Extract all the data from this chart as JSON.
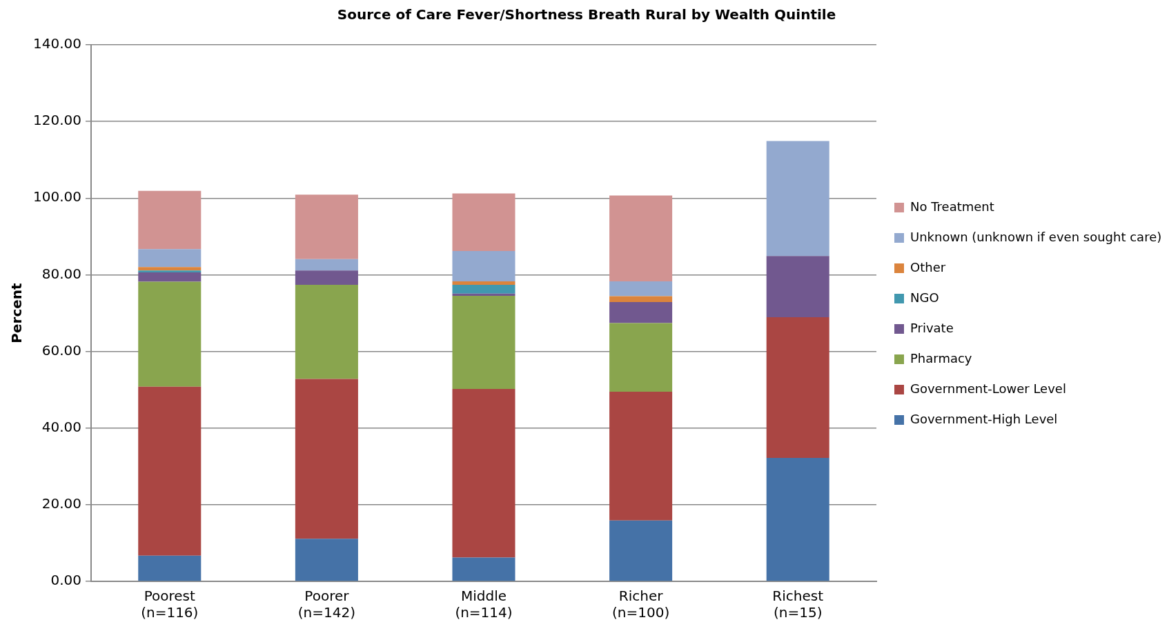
{
  "chart_data": {
    "type": "bar",
    "stacked": true,
    "title": "Source of Care Fever/Shortness Breath Rural by Wealth Quintile",
    "ylabel": "Percent",
    "categories": [
      "Poorest\n(n=116)",
      "Poorer\n(n=142)",
      "Middle\n(n=114)",
      "Richer\n(n=100)",
      "Richest\n(n=15)"
    ],
    "series": [
      {
        "name": "Government-High Level",
        "color": "#4572a7",
        "values": [
          6.7,
          11.1,
          6.2,
          15.9,
          32.2
        ]
      },
      {
        "name": "Government-Lower Level",
        "color": "#aa4643",
        "values": [
          44.1,
          41.7,
          44.0,
          33.6,
          36.7
        ]
      },
      {
        "name": "Pharmacy",
        "color": "#89a54e",
        "values": [
          27.4,
          24.6,
          24.3,
          17.9,
          0
        ]
      },
      {
        "name": "Private",
        "color": "#71588f",
        "values": [
          2.4,
          3.7,
          0.6,
          5.5,
          16.0
        ]
      },
      {
        "name": "NGO",
        "color": "#4198af",
        "values": [
          0.5,
          0,
          2.3,
          0,
          0
        ]
      },
      {
        "name": "Other",
        "color": "#db843d",
        "values": [
          0.9,
          0,
          0.9,
          1.5,
          0
        ]
      },
      {
        "name": "Unknown (unknown if even sought care)",
        "color": "#93a9cf",
        "values": [
          4.7,
          3.0,
          7.9,
          3.9,
          30.0
        ]
      },
      {
        "name": "No Treatment",
        "color": "#d19392",
        "values": [
          15.2,
          16.8,
          15.0,
          22.4,
          0
        ]
      }
    ],
    "ylim": [
      0,
      140
    ],
    "yticks": [
      {
        "value": 0,
        "label": "0.00"
      },
      {
        "value": 20,
        "label": "20.00"
      },
      {
        "value": 40,
        "label": "40.00"
      },
      {
        "value": 60,
        "label": "60.00"
      },
      {
        "value": 80,
        "label": "80.00"
      },
      {
        "value": 100,
        "label": "100.00"
      },
      {
        "value": 120,
        "label": "120.00"
      },
      {
        "value": 140,
        "label": "140.00"
      }
    ],
    "grid": "y",
    "legend": "right"
  }
}
